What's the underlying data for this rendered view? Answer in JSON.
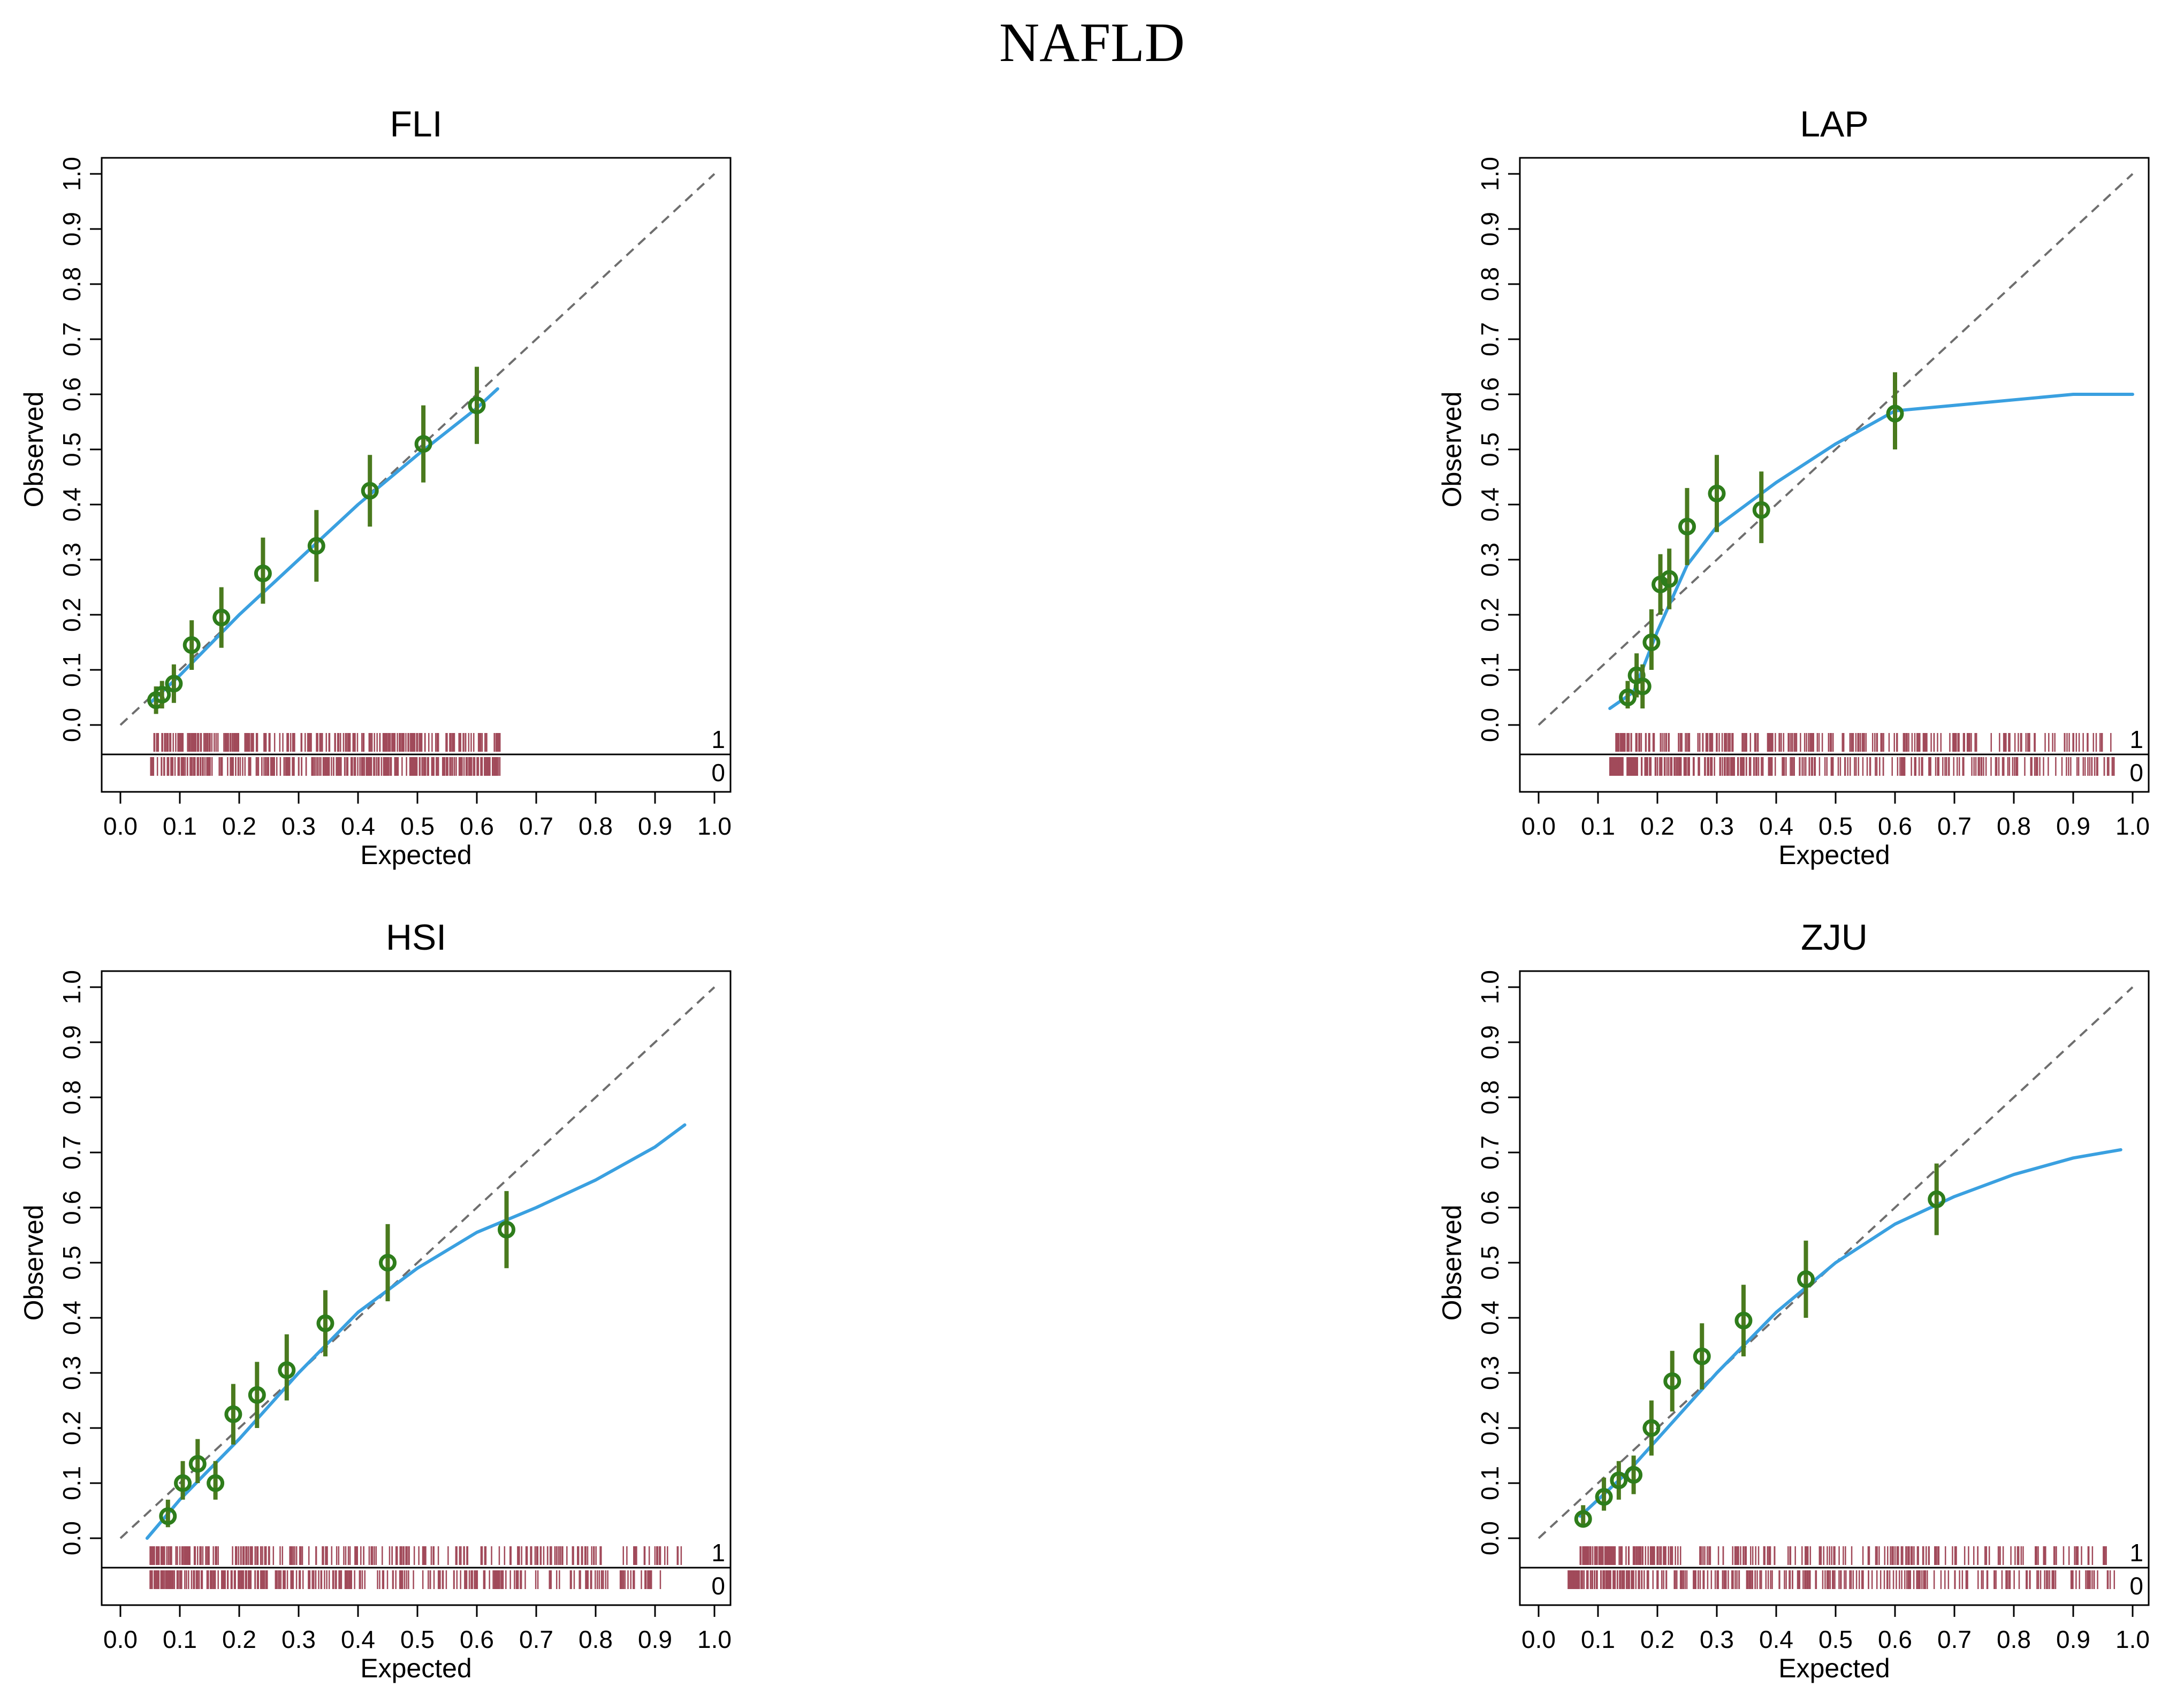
{
  "figure": {
    "title": "NAFLD"
  },
  "chart_data": [
    {
      "type": "scatter",
      "title": "FLI",
      "xlabel": "Expected",
      "ylabel": "Observed",
      "xlim": [
        0,
        1
      ],
      "ylim": [
        0,
        1
      ],
      "xticks": [
        "0.0",
        "0.1",
        "0.2",
        "0.3",
        "0.4",
        "0.5",
        "0.6",
        "0.7",
        "0.8",
        "0.9",
        "1.0"
      ],
      "yticks": [
        "0.0",
        "0.1",
        "0.2",
        "0.3",
        "0.4",
        "0.5",
        "0.6",
        "0.7",
        "0.8",
        "0.9",
        "1.0"
      ],
      "rug_labels": [
        "1",
        "0"
      ],
      "points": [
        {
          "x": 0.06,
          "y": 0.045,
          "lo": 0.02,
          "hi": 0.07
        },
        {
          "x": 0.07,
          "y": 0.055,
          "lo": 0.03,
          "hi": 0.08
        },
        {
          "x": 0.09,
          "y": 0.075,
          "lo": 0.04,
          "hi": 0.11
        },
        {
          "x": 0.12,
          "y": 0.145,
          "lo": 0.1,
          "hi": 0.19
        },
        {
          "x": 0.17,
          "y": 0.195,
          "lo": 0.14,
          "hi": 0.25
        },
        {
          "x": 0.24,
          "y": 0.275,
          "lo": 0.22,
          "hi": 0.34
        },
        {
          "x": 0.33,
          "y": 0.325,
          "lo": 0.26,
          "hi": 0.39
        },
        {
          "x": 0.42,
          "y": 0.425,
          "lo": 0.36,
          "hi": 0.49
        },
        {
          "x": 0.51,
          "y": 0.51,
          "lo": 0.44,
          "hi": 0.58
        },
        {
          "x": 0.6,
          "y": 0.58,
          "lo": 0.51,
          "hi": 0.65
        }
      ],
      "smooth": [
        [
          0.05,
          0.04
        ],
        [
          0.1,
          0.09
        ],
        [
          0.2,
          0.2
        ],
        [
          0.3,
          0.3
        ],
        [
          0.4,
          0.4
        ],
        [
          0.5,
          0.49
        ],
        [
          0.6,
          0.575
        ],
        [
          0.635,
          0.61
        ]
      ],
      "rug_events_range": [
        0.05,
        0.64
      ],
      "rug_nonevents_range": [
        0.05,
        0.64
      ]
    },
    {
      "type": "scatter",
      "title": "LAP",
      "xlabel": "Expected",
      "ylabel": "Observed",
      "xlim": [
        0,
        1
      ],
      "ylim": [
        0,
        1
      ],
      "xticks": [
        "0.0",
        "0.1",
        "0.2",
        "0.3",
        "0.4",
        "0.5",
        "0.6",
        "0.7",
        "0.8",
        "0.9",
        "1.0"
      ],
      "yticks": [
        "0.0",
        "0.1",
        "0.2",
        "0.3",
        "0.4",
        "0.5",
        "0.6",
        "0.7",
        "0.8",
        "0.9",
        "1.0"
      ],
      "rug_labels": [
        "1",
        "0"
      ],
      "points": [
        {
          "x": 0.15,
          "y": 0.05,
          "lo": 0.03,
          "hi": 0.08
        },
        {
          "x": 0.165,
          "y": 0.09,
          "lo": 0.05,
          "hi": 0.13
        },
        {
          "x": 0.175,
          "y": 0.07,
          "lo": 0.03,
          "hi": 0.11
        },
        {
          "x": 0.19,
          "y": 0.15,
          "lo": 0.1,
          "hi": 0.21
        },
        {
          "x": 0.205,
          "y": 0.255,
          "lo": 0.2,
          "hi": 0.31
        },
        {
          "x": 0.22,
          "y": 0.265,
          "lo": 0.21,
          "hi": 0.32
        },
        {
          "x": 0.25,
          "y": 0.36,
          "lo": 0.29,
          "hi": 0.43
        },
        {
          "x": 0.3,
          "y": 0.42,
          "lo": 0.35,
          "hi": 0.49
        },
        {
          "x": 0.375,
          "y": 0.39,
          "lo": 0.33,
          "hi": 0.46
        },
        {
          "x": 0.6,
          "y": 0.565,
          "lo": 0.5,
          "hi": 0.64
        }
      ],
      "smooth": [
        [
          0.12,
          0.03
        ],
        [
          0.16,
          0.06
        ],
        [
          0.2,
          0.17
        ],
        [
          0.25,
          0.29
        ],
        [
          0.3,
          0.36
        ],
        [
          0.4,
          0.44
        ],
        [
          0.5,
          0.51
        ],
        [
          0.6,
          0.57
        ],
        [
          0.7,
          0.58
        ],
        [
          0.8,
          0.59
        ],
        [
          0.9,
          0.6
        ],
        [
          1.0,
          0.6
        ]
      ],
      "rug_events_range": [
        0.13,
        0.97
      ],
      "rug_nonevents_range": [
        0.12,
        0.97
      ]
    },
    {
      "type": "scatter",
      "title": "HSI",
      "xlabel": "Expected",
      "ylabel": "Observed",
      "xlim": [
        0,
        1
      ],
      "ylim": [
        0,
        1
      ],
      "xticks": [
        "0.0",
        "0.1",
        "0.2",
        "0.3",
        "0.4",
        "0.5",
        "0.6",
        "0.7",
        "0.8",
        "0.9",
        "1.0"
      ],
      "yticks": [
        "0.0",
        "0.1",
        "0.2",
        "0.3",
        "0.4",
        "0.5",
        "0.6",
        "0.7",
        "0.8",
        "0.9",
        "1.0"
      ],
      "rug_labels": [
        "1",
        "0"
      ],
      "points": [
        {
          "x": 0.08,
          "y": 0.04,
          "lo": 0.02,
          "hi": 0.07
        },
        {
          "x": 0.105,
          "y": 0.1,
          "lo": 0.07,
          "hi": 0.14
        },
        {
          "x": 0.13,
          "y": 0.135,
          "lo": 0.1,
          "hi": 0.18
        },
        {
          "x": 0.16,
          "y": 0.1,
          "lo": 0.07,
          "hi": 0.14
        },
        {
          "x": 0.19,
          "y": 0.225,
          "lo": 0.17,
          "hi": 0.28
        },
        {
          "x": 0.23,
          "y": 0.26,
          "lo": 0.2,
          "hi": 0.32
        },
        {
          "x": 0.28,
          "y": 0.305,
          "lo": 0.25,
          "hi": 0.37
        },
        {
          "x": 0.345,
          "y": 0.39,
          "lo": 0.33,
          "hi": 0.45
        },
        {
          "x": 0.45,
          "y": 0.5,
          "lo": 0.43,
          "hi": 0.57
        },
        {
          "x": 0.65,
          "y": 0.56,
          "lo": 0.49,
          "hi": 0.63
        }
      ],
      "smooth": [
        [
          0.045,
          0.0
        ],
        [
          0.1,
          0.07
        ],
        [
          0.2,
          0.18
        ],
        [
          0.3,
          0.3
        ],
        [
          0.4,
          0.41
        ],
        [
          0.5,
          0.49
        ],
        [
          0.6,
          0.555
        ],
        [
          0.7,
          0.6
        ],
        [
          0.8,
          0.65
        ],
        [
          0.9,
          0.71
        ],
        [
          0.95,
          0.75
        ]
      ],
      "rug_events_range": [
        0.05,
        0.95
      ],
      "rug_nonevents_range": [
        0.05,
        0.92
      ]
    },
    {
      "type": "scatter",
      "title": "ZJU",
      "xlabel": "Expected",
      "ylabel": "Observed",
      "xlim": [
        0,
        1
      ],
      "ylim": [
        0,
        1
      ],
      "xticks": [
        "0.0",
        "0.1",
        "0.2",
        "0.3",
        "0.4",
        "0.5",
        "0.6",
        "0.7",
        "0.8",
        "0.9",
        "1.0"
      ],
      "yticks": [
        "0.0",
        "0.1",
        "0.2",
        "0.3",
        "0.4",
        "0.5",
        "0.6",
        "0.7",
        "0.8",
        "0.9",
        "1.0"
      ],
      "rug_labels": [
        "1",
        "0"
      ],
      "points": [
        {
          "x": 0.075,
          "y": 0.035,
          "lo": 0.02,
          "hi": 0.06
        },
        {
          "x": 0.11,
          "y": 0.075,
          "lo": 0.05,
          "hi": 0.11
        },
        {
          "x": 0.135,
          "y": 0.105,
          "lo": 0.07,
          "hi": 0.14
        },
        {
          "x": 0.16,
          "y": 0.115,
          "lo": 0.08,
          "hi": 0.15
        },
        {
          "x": 0.19,
          "y": 0.2,
          "lo": 0.15,
          "hi": 0.25
        },
        {
          "x": 0.225,
          "y": 0.285,
          "lo": 0.23,
          "hi": 0.34
        },
        {
          "x": 0.275,
          "y": 0.33,
          "lo": 0.27,
          "hi": 0.39
        },
        {
          "x": 0.345,
          "y": 0.395,
          "lo": 0.33,
          "hi": 0.46
        },
        {
          "x": 0.45,
          "y": 0.47,
          "lo": 0.4,
          "hi": 0.54
        },
        {
          "x": 0.67,
          "y": 0.615,
          "lo": 0.55,
          "hi": 0.68
        }
      ],
      "smooth": [
        [
          0.07,
          0.04
        ],
        [
          0.15,
          0.12
        ],
        [
          0.2,
          0.18
        ],
        [
          0.3,
          0.3
        ],
        [
          0.4,
          0.41
        ],
        [
          0.5,
          0.5
        ],
        [
          0.6,
          0.57
        ],
        [
          0.7,
          0.62
        ],
        [
          0.8,
          0.66
        ],
        [
          0.9,
          0.69
        ],
        [
          0.98,
          0.705
        ]
      ],
      "rug_events_range": [
        0.07,
        0.96
      ],
      "rug_nonevents_range": [
        0.05,
        0.97
      ]
    }
  ],
  "colors": {
    "smooth": "#3aa0e0",
    "errorbar": "#4a7a1e",
    "point": "#2e7d1b",
    "diagonal": "#6e6e6e",
    "rug": "#a14a5a",
    "axis": "#000000"
  }
}
